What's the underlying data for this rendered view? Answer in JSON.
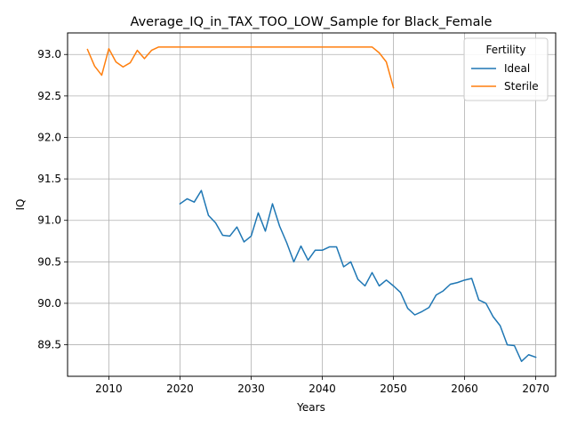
{
  "chart_data": {
    "type": "line",
    "title": "Average_IQ_in_TAX_TOO_LOW_Sample for Black_Female",
    "xlabel": "Years",
    "ylabel": "IQ",
    "xlim": [
      2004.2,
      2072.8
    ],
    "ylim": [
      89.12,
      93.26
    ],
    "x_ticks": [
      2010,
      2020,
      2030,
      2040,
      2050,
      2060,
      2070
    ],
    "y_ticks": [
      89.5,
      90.0,
      90.5,
      91.0,
      91.5,
      92.0,
      92.5,
      93.0
    ],
    "x_tick_labels": [
      "2010",
      "2020",
      "2030",
      "2040",
      "2050",
      "2060",
      "2070"
    ],
    "y_tick_labels": [
      "89.5",
      "90.0",
      "90.5",
      "91.0",
      "91.5",
      "92.0",
      "92.5",
      "93.0"
    ],
    "grid": true,
    "legend": {
      "title": "Fertility",
      "position": "top-right"
    },
    "series": [
      {
        "name": "Ideal",
        "color": "#1f77b4",
        "x": [
          2020,
          2021,
          2022,
          2023,
          2024,
          2025,
          2026,
          2027,
          2028,
          2029,
          2030,
          2031,
          2032,
          2033,
          2034,
          2035,
          2036,
          2037,
          2038,
          2039,
          2040,
          2041,
          2042,
          2043,
          2044,
          2045,
          2046,
          2047,
          2048,
          2049,
          2050,
          2051,
          2052,
          2053,
          2054,
          2055,
          2056,
          2057,
          2058,
          2059,
          2060,
          2061,
          2062,
          2063,
          2064,
          2065,
          2066,
          2067,
          2068,
          2069,
          2070
        ],
        "y": [
          91.2,
          91.26,
          91.22,
          91.36,
          91.06,
          90.97,
          90.82,
          90.81,
          90.92,
          90.74,
          90.81,
          91.09,
          90.87,
          91.2,
          90.93,
          90.73,
          90.5,
          90.69,
          90.52,
          90.64,
          90.64,
          90.68,
          90.68,
          90.44,
          90.5,
          90.29,
          90.21,
          90.37,
          90.21,
          90.28,
          90.21,
          90.13,
          89.94,
          89.86,
          89.9,
          89.95,
          90.1,
          90.15,
          90.23,
          90.25,
          90.28,
          90.3,
          90.04,
          90.0,
          89.84,
          89.73,
          89.5,
          89.49,
          89.3,
          89.38,
          89.35
        ]
      },
      {
        "name": "Sterile",
        "color": "#ff7f0e",
        "x": [
          2007,
          2008,
          2009,
          2010,
          2011,
          2012,
          2013,
          2014,
          2015,
          2016,
          2017,
          2018,
          2019,
          2020,
          2021,
          2022,
          2023,
          2024,
          2025,
          2026,
          2027,
          2028,
          2029,
          2030,
          2031,
          2032,
          2033,
          2034,
          2035,
          2036,
          2037,
          2038,
          2039,
          2040,
          2041,
          2042,
          2043,
          2044,
          2045,
          2046,
          2047,
          2048,
          2049,
          2050
        ],
        "y": [
          93.06,
          92.86,
          92.75,
          93.07,
          92.91,
          92.85,
          92.9,
          93.05,
          92.95,
          93.05,
          93.09,
          93.09,
          93.09,
          93.09,
          93.09,
          93.09,
          93.09,
          93.09,
          93.09,
          93.09,
          93.09,
          93.09,
          93.09,
          93.09,
          93.09,
          93.09,
          93.09,
          93.09,
          93.09,
          93.09,
          93.09,
          93.09,
          93.09,
          93.09,
          93.09,
          93.09,
          93.09,
          93.09,
          93.09,
          93.09,
          93.09,
          93.02,
          92.91,
          92.6
        ]
      }
    ]
  }
}
